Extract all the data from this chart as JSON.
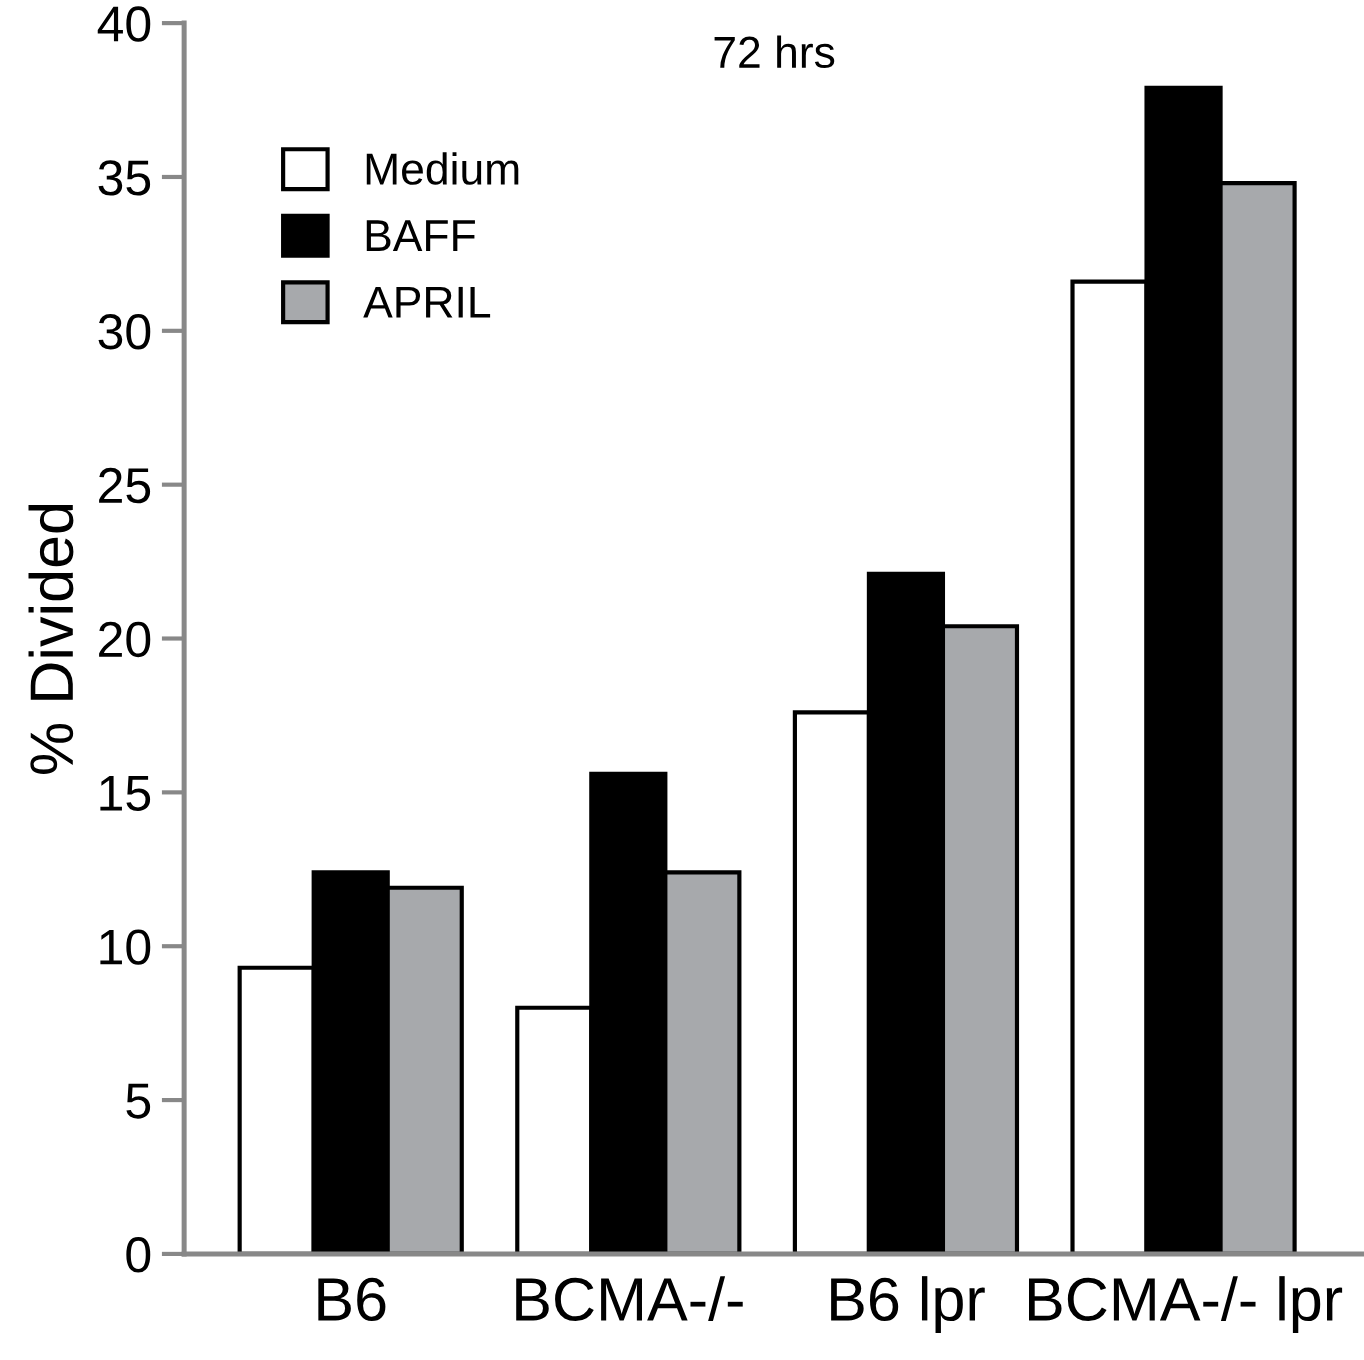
{
  "chart_data": {
    "type": "bar",
    "title": "72 hrs",
    "ylabel": "% Divided",
    "categories": [
      "B6",
      "BCMA-/-",
      "B6 lpr",
      "BCMA-/- lpr"
    ],
    "series": [
      {
        "name": "Medium",
        "color": "#ffffff",
        "values": [
          9.3,
          8.0,
          17.6,
          31.6
        ]
      },
      {
        "name": "BAFF",
        "color": "#000000",
        "values": [
          12.4,
          15.6,
          22.1,
          37.9
        ]
      },
      {
        "name": "APRIL",
        "color": "#a7a9ac",
        "values": [
          11.9,
          12.4,
          20.4,
          34.8
        ]
      }
    ],
    "ylim": [
      0,
      40
    ],
    "yticks": [
      0,
      5,
      10,
      15,
      20,
      25,
      30,
      35,
      40
    ],
    "grid": false,
    "legend": "top left"
  }
}
